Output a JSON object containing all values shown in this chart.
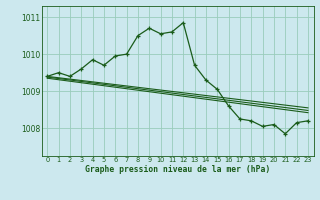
{
  "xlabel": "Graphe pression niveau de la mer (hPa)",
  "background_color": "#cce8ee",
  "grid_color": "#99ccbb",
  "line_color": "#1a5c1a",
  "xlim": [
    -0.5,
    23.5
  ],
  "ylim": [
    1007.25,
    1011.3
  ],
  "yticks": [
    1008,
    1009,
    1010,
    1011
  ],
  "xticks": [
    0,
    1,
    2,
    3,
    4,
    5,
    6,
    7,
    8,
    9,
    10,
    11,
    12,
    13,
    14,
    15,
    16,
    17,
    18,
    19,
    20,
    21,
    22,
    23
  ],
  "hours": [
    0,
    1,
    2,
    3,
    4,
    5,
    6,
    7,
    8,
    9,
    10,
    11,
    12,
    13,
    14,
    15,
    16,
    17,
    18,
    19,
    20,
    21,
    22,
    23
  ],
  "series_main": [
    1009.4,
    1009.5,
    1009.4,
    1009.6,
    1009.85,
    1009.7,
    1009.95,
    1010.0,
    1010.5,
    1010.7,
    1010.55,
    1010.6,
    1010.85,
    1009.7,
    1009.3,
    1009.05,
    1008.6,
    1008.25,
    1008.2,
    1008.05,
    1008.1,
    1007.85,
    1008.15,
    1008.2
  ],
  "trend_lines": [
    [
      [
        0,
        23
      ],
      [
        1009.4,
        1008.55
      ]
    ],
    [
      [
        0,
        23
      ],
      [
        1009.38,
        1008.48
      ]
    ],
    [
      [
        0,
        23
      ],
      [
        1009.35,
        1008.42
      ]
    ]
  ]
}
